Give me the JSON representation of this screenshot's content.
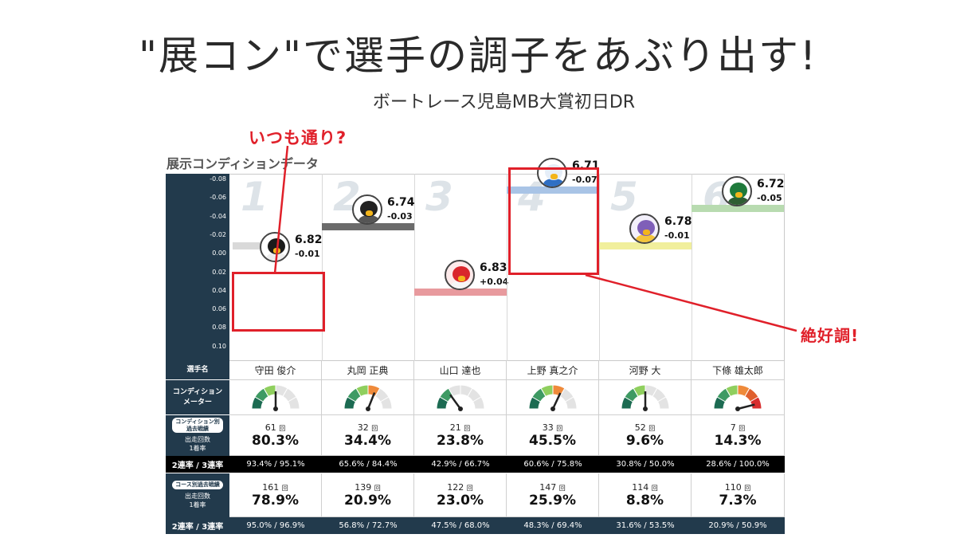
{
  "headline": "\"展コン\"で選手の調子をあぶり出す!",
  "subline": "ボートレース児島MB大賞初日DR",
  "callouts": {
    "top": "いつも通り?",
    "right": "絶好調!"
  },
  "section_title": "展示コンディションデータ",
  "y_ticks": [
    "-0.08",
    "-0.06",
    "-0.04",
    "-0.02",
    "0.00",
    "0.02",
    "0.04",
    "0.06",
    "0.08",
    "0.10"
  ],
  "labels": {
    "player_name": "選手名",
    "condition_meter_1": "コンディション",
    "condition_meter_2": "メーター",
    "cond_record_pill_1": "コンディション別",
    "cond_record_pill_2": "過去戦績",
    "starts": "出走回数",
    "first_rate": "1着率",
    "course_record_pill": "コース別過去戦績",
    "rate_2_3": "2連率 / 3連率"
  },
  "colors": {
    "navy": "#223a4c",
    "red": "#e0202a",
    "black_row": "#000000"
  },
  "lanes": [
    {
      "lane": "1",
      "name": "守田 俊介",
      "time": "6.82",
      "diff": "-0.01",
      "mascot_icon": "black-penguin-icon",
      "bar_color": "#d9d9d9",
      "cond_count": "61",
      "cond_rate": "80.3%",
      "cond_2_3": "93.4% / 95.1%",
      "course_count": "161",
      "course_rate": "78.9%",
      "course_2_3": "95.0% / 96.9%",
      "meter_level": 0.5
    },
    {
      "lane": "2",
      "name": "丸岡 正典",
      "time": "6.74",
      "diff": "-0.03",
      "mascot_icon": "black-bird-icon",
      "bar_color": "#6b6b6b",
      "cond_count": "32",
      "cond_rate": "34.4%",
      "cond_2_3": "65.6% / 84.4%",
      "course_count": "139",
      "course_rate": "20.9%",
      "course_2_3": "56.8% / 72.7%",
      "meter_level": 0.62
    },
    {
      "lane": "3",
      "name": "山口 達也",
      "time": "6.83",
      "diff": "+0.04",
      "mascot_icon": "red-duck-icon",
      "bar_color": "#e89a9e",
      "cond_count": "21",
      "cond_rate": "23.8%",
      "cond_2_3": "42.9% / 66.7%",
      "course_count": "122",
      "course_rate": "23.0%",
      "course_2_3": "47.5% / 68.0%",
      "meter_level": 0.3
    },
    {
      "lane": "4",
      "name": "上野 真之介",
      "time": "6.71",
      "diff": "-0.07",
      "mascot_icon": "blue-seal-icon",
      "bar_color": "#a9c4e6",
      "cond_count": "33",
      "cond_rate": "45.5%",
      "cond_2_3": "60.6% / 75.8%",
      "course_count": "147",
      "course_rate": "25.9%",
      "course_2_3": "48.3% / 69.4%",
      "meter_level": 0.64
    },
    {
      "lane": "5",
      "name": "河野 大",
      "time": "6.78",
      "diff": "-0.01",
      "mascot_icon": "purple-bird-icon",
      "bar_color": "#f1ef9c",
      "cond_count": "52",
      "cond_rate": "9.6%",
      "cond_2_3": "30.8% / 50.0%",
      "course_count": "114",
      "course_rate": "8.8%",
      "course_2_3": "31.6% / 53.5%",
      "meter_level": 0.5
    },
    {
      "lane": "6",
      "name": "下條 雄太郎",
      "time": "6.72",
      "diff": "-0.05",
      "mascot_icon": "green-kappa-icon",
      "bar_color": "#b8dbb0",
      "cond_count": "7",
      "cond_rate": "14.3%",
      "cond_2_3": "28.6% / 100.0%",
      "course_count": "110",
      "course_rate": "7.3%",
      "course_2_3": "20.9% / 50.9%",
      "meter_level": 0.92
    }
  ],
  "count_unit": "回"
}
